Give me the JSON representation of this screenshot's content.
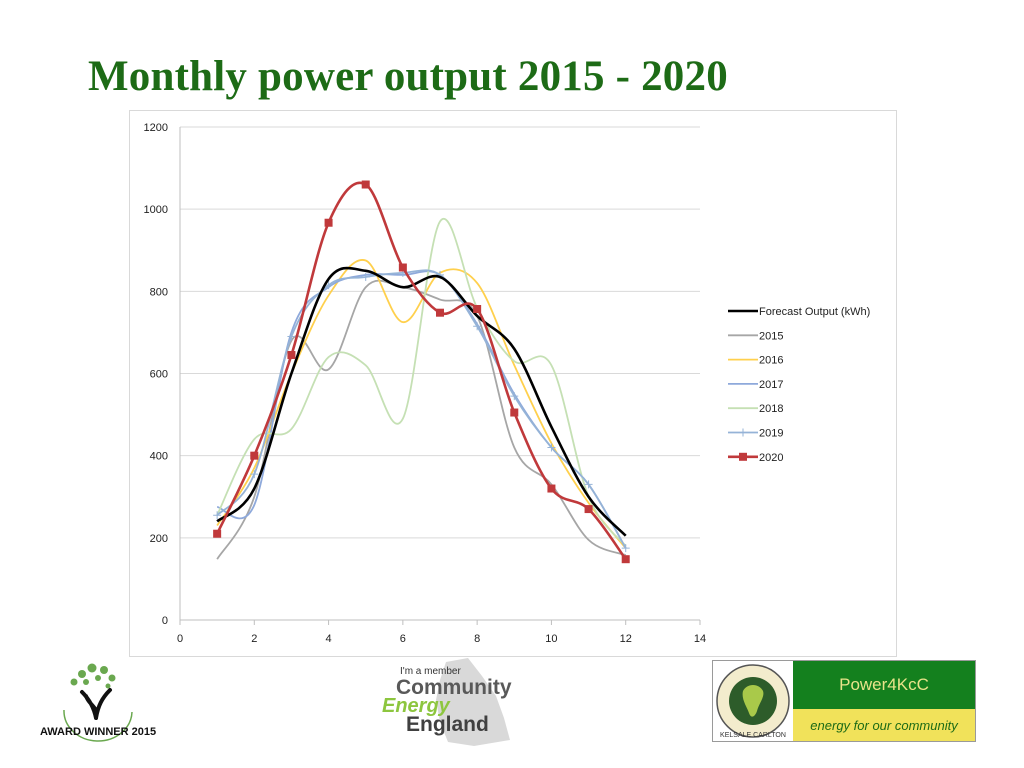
{
  "page": {
    "title": "Monthly power output 2015 - 2020"
  },
  "logos": {
    "award": {
      "icon": "award-winner-2015-logo",
      "text": "AWARD WINNER 2015"
    },
    "community_energy": {
      "icon": "community-energy-england-logo",
      "line1": "I'm a member",
      "line2": "Community",
      "line3": "Energy",
      "line4": "England"
    },
    "power4kcc": {
      "icon": "kelsale-carlton-seal-logo",
      "seal_text": "KELSALE CARLTON",
      "name": "Power4KcC",
      "tagline": "energy for our community"
    }
  },
  "chart_data": {
    "type": "scatter",
    "title": "",
    "xlabel": "",
    "ylabel": "",
    "xlim": [
      0,
      14
    ],
    "ylim": [
      0,
      1200
    ],
    "x_ticks": [
      0,
      2,
      4,
      6,
      8,
      10,
      12,
      14
    ],
    "y_ticks": [
      0,
      200,
      400,
      600,
      800,
      1000,
      1200
    ],
    "grid": "horizontal",
    "legend_position": "right",
    "x": [
      1,
      2,
      3,
      4,
      5,
      6,
      7,
      8,
      9,
      10,
      11,
      12
    ],
    "series": [
      {
        "name": "Forecast Output (kWh)",
        "color": "#000000",
        "marker": "none",
        "values": [
          240,
          320,
          600,
          830,
          850,
          810,
          835,
          740,
          660,
          470,
          300,
          205
        ]
      },
      {
        "name": "2015",
        "color": "#a6a6a6",
        "marker": "none",
        "values": [
          148,
          300,
          680,
          610,
          810,
          810,
          780,
          740,
          420,
          330,
          195,
          158
        ]
      },
      {
        "name": "2016",
        "color": "#ffd04d",
        "marker": "none",
        "values": [
          230,
          370,
          600,
          790,
          875,
          725,
          845,
          820,
          620,
          430,
          285,
          175
        ]
      },
      {
        "name": "2017",
        "color": "#8ea9db",
        "marker": "none",
        "values": [
          275,
          280,
          700,
          810,
          840,
          840,
          840,
          720,
          550,
          420,
          330,
          175
        ]
      },
      {
        "name": "2018",
        "color": "#c5e0b4",
        "marker": "none",
        "values": [
          255,
          440,
          465,
          640,
          620,
          490,
          970,
          760,
          630,
          620,
          300,
          180
        ]
      },
      {
        "name": "2019",
        "color": "#95b3d7",
        "marker": "plus",
        "values": [
          255,
          355,
          690,
          815,
          835,
          845,
          840,
          715,
          545,
          420,
          330,
          175
        ]
      },
      {
        "name": "2020",
        "color": "#c0393b",
        "marker": "square",
        "values": [
          210,
          400,
          645,
          967,
          1060,
          858,
          748,
          757,
          505,
          320,
          270,
          148
        ]
      }
    ]
  }
}
